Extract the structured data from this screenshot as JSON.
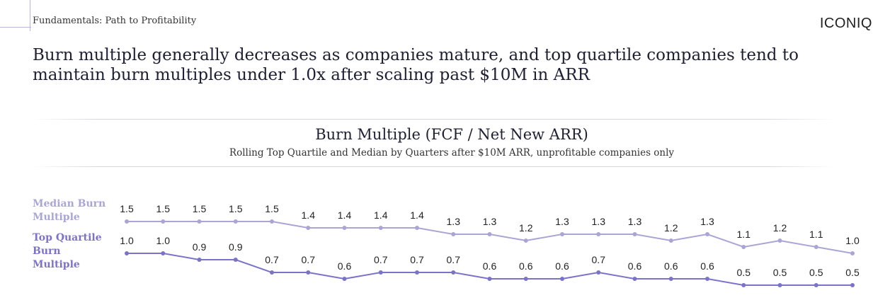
{
  "header": {
    "section_label": "Fundamentals: Path to Profitability",
    "brand": "ICONIQ"
  },
  "headline": "Burn multiple generally decreases as companies mature, and top quartile companies tend to maintain burn multiples under 1.0x after scaling past $10M in ARR",
  "chart_data": {
    "type": "line",
    "title": "Burn Multiple (FCF / Net New ARR)",
    "subtitle": "Rolling Top Quartile and Median by Quarters after $10M ARR, unprofitable companies only",
    "xlabel": "",
    "ylabel": "",
    "grid": false,
    "legend_placement": "left",
    "series": [
      {
        "name": "Median Burn Multiple",
        "color": "#a9a6d6",
        "values": [
          1.5,
          1.5,
          1.5,
          1.5,
          1.5,
          1.4,
          1.4,
          1.4,
          1.4,
          1.3,
          1.3,
          1.2,
          1.3,
          1.3,
          1.3,
          1.2,
          1.3,
          1.1,
          1.2,
          1.1,
          1.0
        ],
        "labels": [
          "1.5",
          "1.5",
          "1.5",
          "1.5",
          "1.5",
          "1.4",
          "1.4",
          "1.4",
          "1.4",
          "1.3",
          "1.3",
          "1.2",
          "1.3",
          "1.3",
          "1.3",
          "1.2",
          "1.3",
          "1.1",
          "1.2",
          "1.1",
          "1.0"
        ]
      },
      {
        "name": "Top Quartile Burn Multiple",
        "color": "#7b73c9",
        "values": [
          1.0,
          1.0,
          0.9,
          0.9,
          0.7,
          0.7,
          0.6,
          0.7,
          0.7,
          0.7,
          0.6,
          0.6,
          0.6,
          0.7,
          0.6,
          0.6,
          0.6,
          0.5,
          0.5,
          0.5,
          0.5
        ],
        "labels": [
          "1.0",
          "1.0",
          "0.9",
          "0.9",
          "0.7",
          "0.7",
          "0.6",
          "0.7",
          "0.7",
          "0.7",
          "0.6",
          "0.6",
          "0.6",
          "0.7",
          "0.6",
          "0.6",
          "0.6",
          "0.5",
          "0.5",
          "0.5",
          "0.5"
        ]
      }
    ],
    "legend_labels": {
      "median": "Median Burn Multiple",
      "top": "Top Quartile Burn Multiple"
    }
  }
}
